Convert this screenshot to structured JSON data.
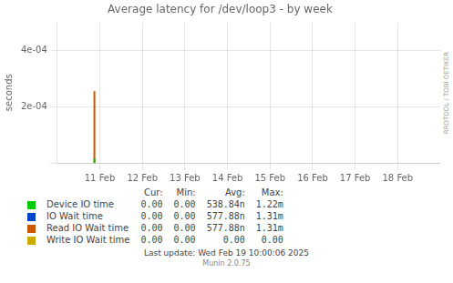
{
  "chart_data": {
    "type": "line",
    "title": "Average latency for /dev/loop3 - by week",
    "y_label": "seconds",
    "x": [
      1739221000,
      1739221000
    ],
    "series": [
      {
        "name": "Device IO time",
        "color": "#00cc00",
        "values": [
          0,
          1.5e-05
        ],
        "legend_values": [
          "0.00",
          "0.00",
          "538.84n",
          "1.22m"
        ]
      },
      {
        "name": "IO Wait time",
        "color": "#0044cc",
        "values": [
          null,
          null
        ],
        "legend_values": [
          "0.00",
          "0.00",
          "577.88n",
          "1.31m"
        ]
      },
      {
        "name": "Read IO Wait time",
        "color": "#cc5500",
        "values": [
          0,
          0.000255
        ],
        "legend_values": [
          "0.00",
          "0.00",
          "577.88n",
          "1.31m"
        ]
      },
      {
        "name": "Write IO Wait time",
        "color": "#ccaa00",
        "values": [
          null,
          null
        ],
        "legend_values": [
          "0.00",
          "0.00",
          "0.00",
          "0.00"
        ]
      }
    ],
    "legend_columns": [
      "Cur:",
      "Min:",
      "Avg:",
      "Max:"
    ],
    "xlim": [
      1739145600,
      1739923200
    ],
    "xticks": [
      {
        "value": 1739232000,
        "label": "11 Feb"
      },
      {
        "value": 1739318400,
        "label": "12 Feb"
      },
      {
        "value": 1739404800,
        "label": "13 Feb"
      },
      {
        "value": 1739491200,
        "label": "14 Feb"
      },
      {
        "value": 1739577600,
        "label": "15 Feb"
      },
      {
        "value": 1739664000,
        "label": "16 Feb"
      },
      {
        "value": 1739750400,
        "label": "17 Feb"
      },
      {
        "value": 1739836800,
        "label": "18 Feb"
      }
    ],
    "ylim": [
      0,
      0.0005
    ],
    "yticks": [
      {
        "value": 0,
        "label": ""
      },
      {
        "value": 0.0002,
        "label": "2e-04"
      },
      {
        "value": 0.0004,
        "label": "4e-04"
      }
    ],
    "grid": true,
    "side_label": "RRDTOOL / TOBI OETIKER",
    "last_update": "Last update: Wed Feb 19 10:00:06 2025",
    "footer": "Munin 2.0.75"
  }
}
